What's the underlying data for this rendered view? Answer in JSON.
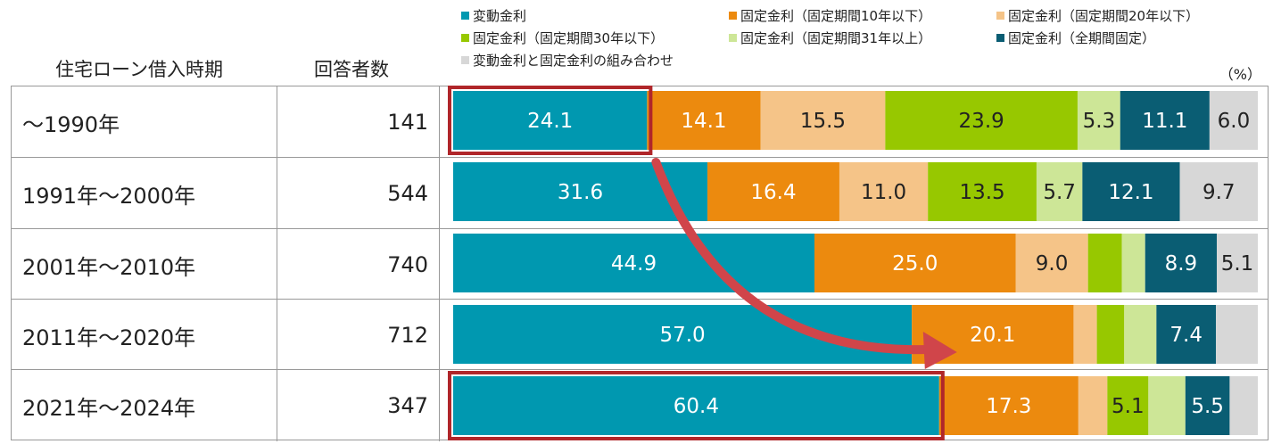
{
  "legend": [
    {
      "label": "変動金利",
      "color": "#0098b0"
    },
    {
      "label": "固定金利（固定期間10年以下）",
      "color": "#ec8a0e"
    },
    {
      "label": "固定金利（固定期間20年以下）",
      "color": "#f5c488"
    },
    {
      "label": "固定金利（固定期間30年以下）",
      "color": "#97c800"
    },
    {
      "label": "固定金利（固定期間31年以上）",
      "color": "#cde697"
    },
    {
      "label": "固定金利（全期間固定）",
      "color": "#0a5d73"
    },
    {
      "label": "変動金利と固定金利の組み合わせ",
      "color": "#d7d7d7"
    }
  ],
  "header": {
    "period": "住宅ローン借入時期",
    "respondents": "回答者数",
    "unit": "（%）"
  },
  "rows": [
    {
      "period": "～1990年",
      "count": "141"
    },
    {
      "period": "1991年～2000年",
      "count": "544"
    },
    {
      "period": "2001年～2010年",
      "count": "740"
    },
    {
      "period": "2011年～2020年",
      "count": "712"
    },
    {
      "period": "2021年～2024年",
      "count": "347"
    }
  ],
  "chart_data": {
    "type": "bar",
    "orientation": "horizontal",
    "stacked": true,
    "categories": [
      "～1990年",
      "1991年～2000年",
      "2001年～2010年",
      "2011年～2020年",
      "2021年～2024年"
    ],
    "series": [
      {
        "name": "変動金利",
        "values": [
          24.1,
          31.6,
          44.9,
          57.0,
          60.4
        ],
        "labels": [
          "24.1",
          "31.6",
          "44.9",
          "57.0",
          "60.4"
        ]
      },
      {
        "name": "固定金利（固定期間10年以下）",
        "values": [
          14.1,
          16.4,
          25.0,
          20.1,
          17.3
        ],
        "labels": [
          "14.1",
          "16.4",
          "25.0",
          "20.1",
          "17.3"
        ]
      },
      {
        "name": "固定金利（固定期間20年以下）",
        "values": [
          15.5,
          11.0,
          9.0,
          2.9,
          3.6
        ],
        "labels": [
          "15.5",
          "11.0",
          "9.0",
          "",
          ""
        ]
      },
      {
        "name": "固定金利（固定期間30年以下）",
        "values": [
          23.9,
          13.5,
          4.2,
          3.4,
          5.1
        ],
        "labels": [
          "23.9",
          "13.5",
          "",
          "",
          "5.1"
        ]
      },
      {
        "name": "固定金利（固定期間31年以上）",
        "values": [
          5.3,
          5.7,
          2.9,
          4.0,
          4.6
        ],
        "labels": [
          "5.3",
          "5.7",
          "",
          "",
          ""
        ]
      },
      {
        "name": "固定金利（全期間固定）",
        "values": [
          11.1,
          12.1,
          8.9,
          7.4,
          5.5
        ],
        "labels": [
          "11.1",
          "12.1",
          "8.9",
          "7.4",
          "5.5"
        ]
      },
      {
        "name": "変動金利と固定金利の組み合わせ",
        "values": [
          6.0,
          9.7,
          5.1,
          5.2,
          3.5
        ],
        "labels": [
          "6.0",
          "9.7",
          "5.1",
          "",
          ""
        ]
      }
    ],
    "label_colors": [
      "#ffffff",
      "#ffffff",
      "#222222",
      "#222222",
      "#222222",
      "#ffffff",
      "#222222"
    ],
    "highlighted": [
      {
        "row": 0,
        "series": 0
      },
      {
        "row": 4,
        "series": 0
      }
    ],
    "highlight_color": "#b0262a",
    "arrow_color": "#d0454a",
    "xlim": [
      0,
      100
    ]
  }
}
